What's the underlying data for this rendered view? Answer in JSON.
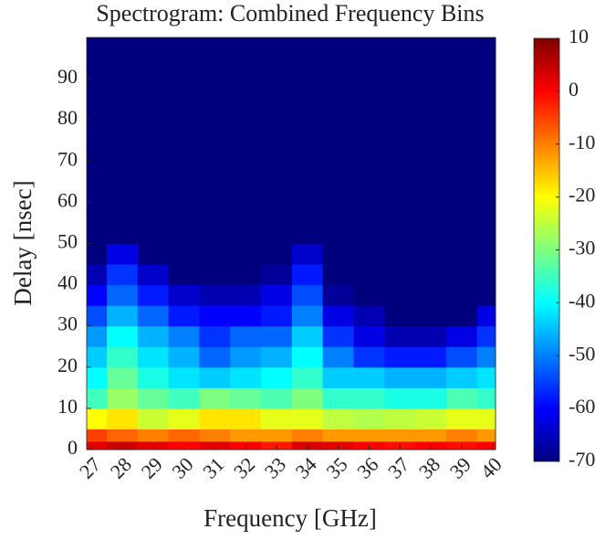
{
  "chart_data": {
    "type": "heatmap",
    "title": "Spectrogram: Combined Frequency Bins",
    "x_label": "Frequency [GHz]",
    "y_label": "Delay [nsec]",
    "x_bins": [
      26.85,
      27.5,
      28.5,
      29.5,
      30.5,
      31.5,
      32.5,
      33.5,
      34.5,
      35.5,
      36.5,
      37.5,
      38.5,
      39.5,
      40.1
    ],
    "y_bins": [
      0,
      2,
      5,
      10,
      15,
      20,
      25,
      30,
      35,
      40,
      45,
      50,
      100
    ],
    "values": [
      [
        2,
        4,
        2,
        0,
        2,
        0,
        -2,
        3,
        2,
        0,
        -1,
        0,
        -1,
        0
      ],
      [
        -5,
        -8,
        -10,
        -8,
        -10,
        -12,
        -12,
        -10,
        -12,
        -12,
        -12,
        -12,
        -10,
        -12
      ],
      [
        -20,
        -18,
        -24,
        -22,
        -18,
        -18,
        -22,
        -22,
        -25,
        -26,
        -25,
        -24,
        -22,
        -22
      ],
      [
        -35,
        -28,
        -32,
        -35,
        -30,
        -32,
        -34,
        -30,
        -36,
        -36,
        -38,
        -38,
        -34,
        -36
      ],
      [
        -40,
        -32,
        -38,
        -42,
        -44,
        -42,
        -40,
        -36,
        -44,
        -44,
        -46,
        -46,
        -44,
        -42
      ],
      [
        -44,
        -36,
        -42,
        -46,
        -52,
        -48,
        -46,
        -40,
        -50,
        -56,
        -58,
        -58,
        -54,
        -50
      ],
      [
        -48,
        -40,
        -46,
        -50,
        -56,
        -52,
        -52,
        -44,
        -56,
        -62,
        -66,
        -66,
        -62,
        -56
      ],
      [
        -54,
        -46,
        -52,
        -58,
        -60,
        -60,
        -58,
        -50,
        -62,
        -66,
        -70,
        -70,
        -70,
        -62
      ],
      [
        -60,
        -52,
        -58,
        -64,
        -66,
        -66,
        -62,
        -54,
        -68,
        -70,
        -70,
        -70,
        -70,
        -70
      ],
      [
        -66,
        -56,
        -64,
        -70,
        -70,
        -70,
        -68,
        -58,
        -70,
        -70,
        -70,
        -70,
        -70,
        -70
      ],
      [
        -70,
        -62,
        -70,
        -70,
        -70,
        -70,
        -70,
        -64,
        -70,
        -70,
        -70,
        -70,
        -70,
        -70
      ],
      [
        -70,
        -70,
        -70,
        -70,
        -70,
        -70,
        -70,
        -70,
        -70,
        -70,
        -70,
        -70,
        -70,
        -70
      ]
    ],
    "xlim": [
      26.85,
      40.1
    ],
    "ylim": [
      0,
      100
    ],
    "xticks": [
      27,
      28,
      29,
      30,
      31,
      32,
      33,
      34,
      35,
      36,
      37,
      38,
      39,
      40
    ],
    "yticks": [
      0,
      10,
      20,
      30,
      40,
      50,
      60,
      70,
      80,
      90
    ],
    "clim": [
      -70,
      10
    ],
    "cticks": [
      10,
      0,
      -10,
      -20,
      -30,
      -40,
      -50,
      -60,
      -70
    ],
    "colormap": [
      "#00007f",
      "#0000ff",
      "#007fff",
      "#00ffff",
      "#7fff7f",
      "#ffff00",
      "#ff7f00",
      "#ff0000",
      "#7f0000"
    ]
  }
}
